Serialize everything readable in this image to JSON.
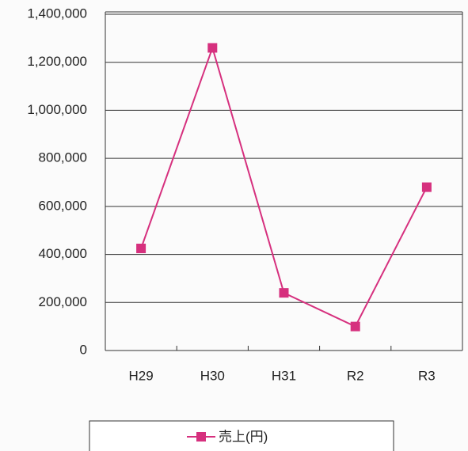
{
  "chart_data": {
    "type": "line",
    "categories": [
      "H29",
      "H30",
      "H31",
      "R2",
      "R3"
    ],
    "series": [
      {
        "name": "売上(円)",
        "color": "#d6307e",
        "values": [
          425000,
          1260000,
          240000,
          100000,
          680000
        ]
      }
    ],
    "ylim": [
      0,
      1400000
    ],
    "yticks": [
      0,
      {
        "value": 200000,
        "label": "200,000"
      },
      {
        "value": 400000,
        "label": "400,000"
      },
      {
        "value": 600000,
        "label": "600,000"
      },
      {
        "value": 800000,
        "label": "800,000"
      },
      {
        "value": 1000000,
        "label": "1,000,000"
      },
      {
        "value": 1200000,
        "label": "1,200,000"
      },
      {
        "value": 1400000,
        "label": "1,400,000"
      }
    ],
    "grid": true,
    "legend": "bottom"
  }
}
